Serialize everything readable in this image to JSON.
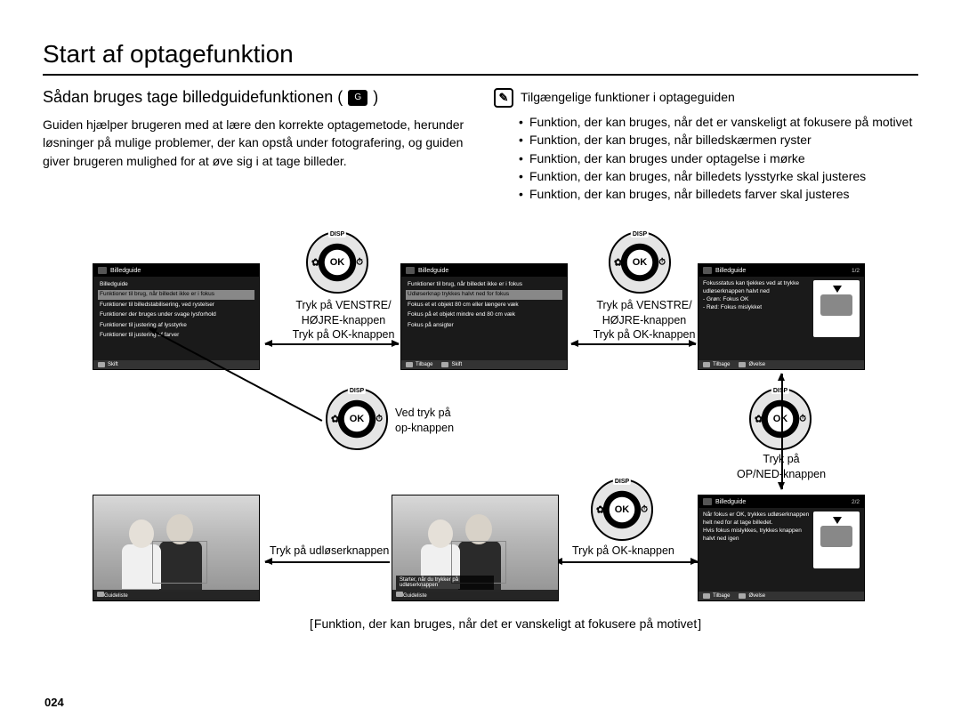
{
  "page": {
    "title": "Start af optagefunktion",
    "number": "024"
  },
  "left": {
    "subtitle_prefix": "Sådan bruges tage billedguidefunktionen (",
    "subtitle_suffix": ")",
    "body": "Guiden hjælper brugeren med at lære den korrekte optagemetode, herunder løsninger på mulige problemer, der kan opstå under fotografering, og guiden giver brugeren mulighed for at øve sig i at tage billeder."
  },
  "right": {
    "note_title": "Tilgængelige funktioner i optageguiden",
    "bullets": [
      "Funktion, der kan bruges, når det er vanskeligt at fokusere på motivet",
      "Funktion, der kan bruges, når billedskærmen ryster",
      "Funktion, der kan bruges under optagelse i mørke",
      "Funktion, der kan bruges, når billedets lysstyrke skal justeres",
      "Funktion, der kan bruges, når billedets farver skal justeres"
    ]
  },
  "diagram": {
    "screen1": {
      "header": "Billedguide",
      "subheader": "Billedguide",
      "lines": [
        "Funktioner til brug, når billedet ikke er i fokus",
        "Funktioner til billedstabilisering, ved rystelser",
        "Funktioner der bruges under svage lysforhold",
        "Funktioner til justering af lysstyrke",
        "Funktioner til justering af farver"
      ],
      "hl_index": 0,
      "footer": [
        {
          "k": "◀",
          "t": "Skift"
        }
      ]
    },
    "screen2": {
      "header": "Billedguide",
      "subheader": "Funktioner til brug, når billedet ikke er i fokus",
      "lines": [
        "Udløserknap trykkes halvt ned for fokus",
        "Fokus et et objekt 80 cm eller længere væk",
        "Fokus på et objekt mindre end 80 cm væk",
        "Fokus på ansigter"
      ],
      "hl_index": 0,
      "footer": [
        {
          "k": "◀",
          "t": "Tilbage"
        },
        {
          "k": "▶",
          "t": "Skift"
        }
      ]
    },
    "screen3": {
      "header": "Billedguide",
      "page": "1/2",
      "text": "Fokusstatus kan tjekkes ved at trykke udløserknappen halvt ned\n- Grøn: Fokus OK\n- Rød: Fokus mislykket",
      "footer": [
        {
          "k": "◀",
          "t": "Tilbage"
        },
        {
          "k": "OK",
          "t": "Øvelse"
        }
      ]
    },
    "screen4": {
      "header": "Billedguide",
      "page": "2/2",
      "text": "Når fokus er OK, trykkes udløserknappen helt ned for at tage billedet.\nHvis fokus mislykkes, trykkes knappen halvt ned igen",
      "footer": [
        {
          "k": "◀",
          "t": "Tilbage"
        },
        {
          "k": "OK",
          "t": "Øvelse"
        }
      ]
    },
    "photo1": {
      "footer_items": [
        "Guideliste"
      ]
    },
    "photo2": {
      "overlay_text": "Starter, når du trykker på udløserknappen",
      "footer_items": [
        "Guideliste"
      ]
    },
    "ok_labels": {
      "top": "DISP",
      "left": "✿",
      "right": "⏱",
      "bottom": "❀"
    },
    "captions": {
      "c1": "Tryk på VENSTRE/\nHØJRE-knappen\nTryk på OK-knappen",
      "c2": "Tryk på VENSTRE/\nHØJRE-knappen\nTryk på OK-knappen",
      "c_up": "Ved tryk på\nop-knappen",
      "c_ok": "Tryk på OK-knappen",
      "c_shutter": "Tryk på udløserknappen",
      "c_updown": "Tryk på\nOP/NED-knappen"
    },
    "bottom_caption": "Funktion, der kan bruges, når det er vanskeligt at fokusere på motivet"
  },
  "colors": {
    "text": "#000000",
    "bg": "#ffffff",
    "screen_bg": "#1a1a1a",
    "screen_hl": "#888888"
  }
}
